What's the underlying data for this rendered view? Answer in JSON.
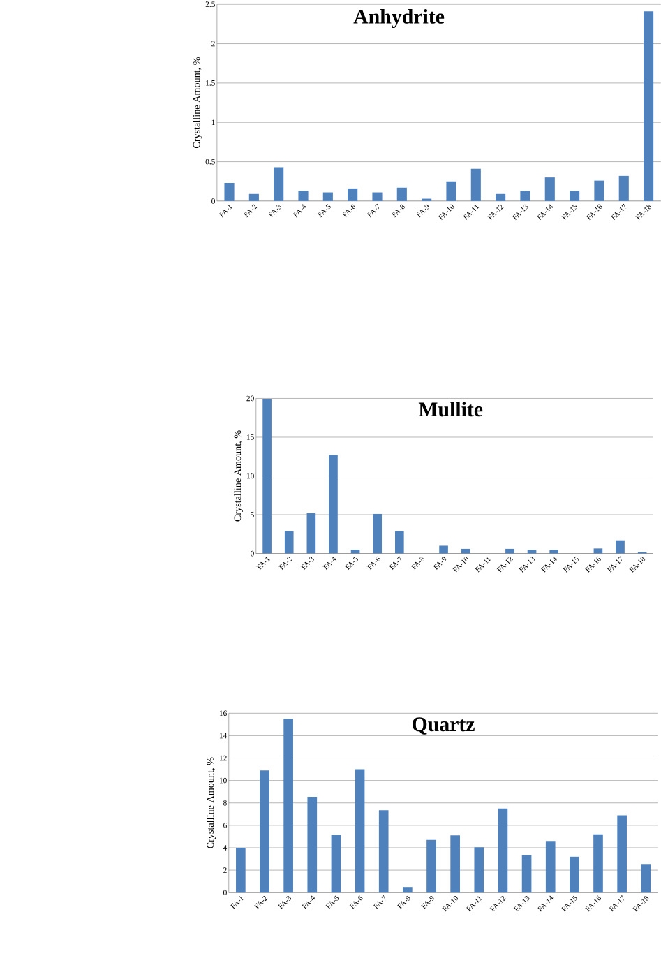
{
  "chart_data": [
    {
      "type": "bar",
      "title": "Anhydrite",
      "ylabel": "Crystalline Amount, %",
      "color": "#4f81bd",
      "grid": "y",
      "ylim": [
        0,
        2.5
      ],
      "yticks": [
        0,
        0.5,
        1,
        1.5,
        2,
        2.5
      ],
      "categories": [
        "FA-1",
        "FA-2",
        "FA-3",
        "FA-4",
        "FA-5",
        "FA-6",
        "FA-7",
        "FA-8",
        "FA-9",
        "FA-10",
        "FA-11",
        "FA-12",
        "FA-13",
        "FA-14",
        "FA-15",
        "FA-16",
        "FA-17",
        "FA-18"
      ],
      "values": [
        0.23,
        0.09,
        0.43,
        0.13,
        0.11,
        0.16,
        0.11,
        0.17,
        0.03,
        0.25,
        0.41,
        0.09,
        0.13,
        0.3,
        0.13,
        0.26,
        0.32,
        2.41
      ]
    },
    {
      "type": "bar",
      "title": "Mullite",
      "ylabel": "Crystalline Amount, %",
      "color": "#4f81bd",
      "grid": "y",
      "ylim": [
        0,
        20
      ],
      "yticks": [
        0,
        5,
        10,
        15,
        20
      ],
      "categories": [
        "FA-1",
        "FA-2",
        "FA-3",
        "FA-4",
        "FA-5",
        "FA-6",
        "FA-7",
        "FA-8",
        "FA-9",
        "FA-10",
        "FA-11",
        "FA-12",
        "FA-13",
        "FA-14",
        "FA-15",
        "FA-16",
        "FA-17",
        "FA-18"
      ],
      "values": [
        19.9,
        2.9,
        5.2,
        12.7,
        0.5,
        5.1,
        2.9,
        0,
        1.0,
        0.6,
        0,
        0.6,
        0.45,
        0.45,
        0,
        0.65,
        1.7,
        0.2
      ]
    },
    {
      "type": "bar",
      "title": "Quartz",
      "ylabel": "Crystalline Amount, %",
      "color": "#4f81bd",
      "grid": "y",
      "ylim": [
        0,
        16
      ],
      "yticks": [
        0,
        2,
        4,
        6,
        8,
        10,
        12,
        14,
        16
      ],
      "categories": [
        "FA-1",
        "FA-2",
        "FA-3",
        "FA-4",
        "FA-5",
        "FA-6",
        "FA-7",
        "FA-8",
        "FA-9",
        "FA-10",
        "FA-11",
        "FA-12",
        "FA-13",
        "FA-14",
        "FA-15",
        "FA-16",
        "FA-17",
        "FA-18"
      ],
      "values": [
        4.0,
        10.9,
        15.5,
        8.55,
        5.15,
        11.0,
        7.35,
        0.5,
        4.7,
        5.1,
        4.05,
        7.5,
        3.35,
        4.6,
        3.2,
        5.2,
        6.9,
        2.55
      ]
    }
  ]
}
